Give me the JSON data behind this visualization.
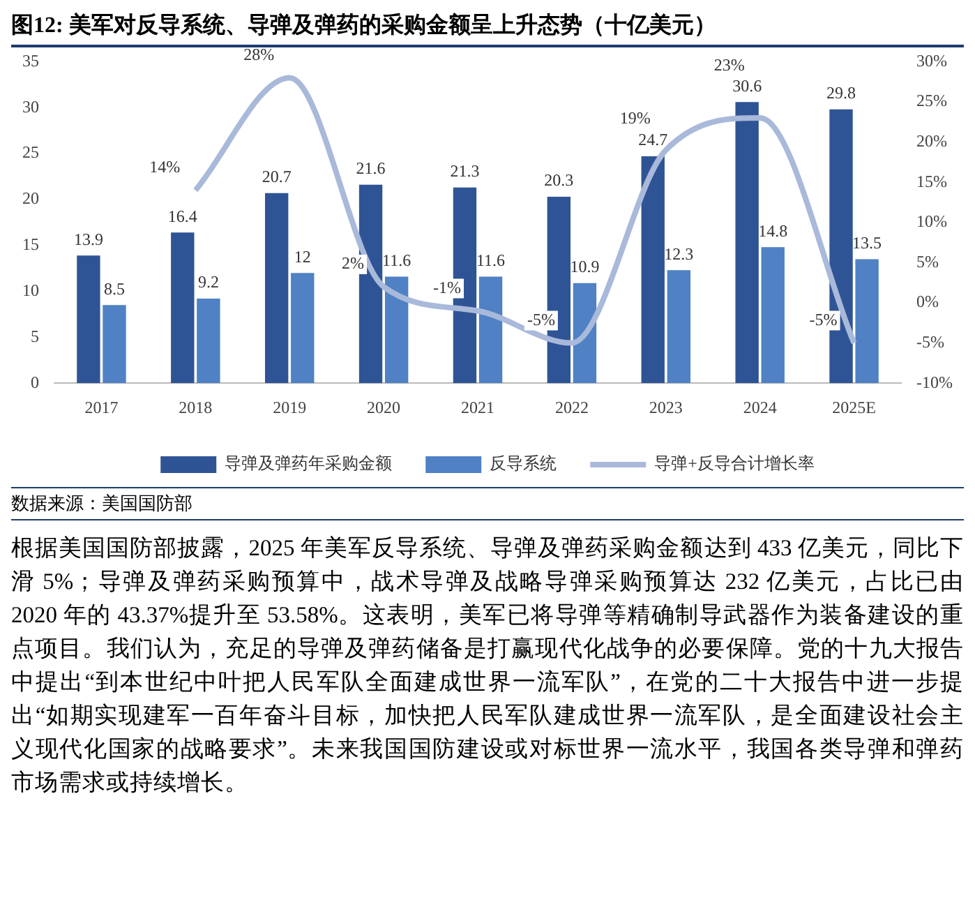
{
  "chart_data": {
    "type": "bar",
    "title": "图12: 美军对反导系统、导弹及弹药的采购金额呈上升态势（十亿美元）",
    "categories": [
      "2017",
      "2018",
      "2019",
      "2020",
      "2021",
      "2022",
      "2023",
      "2024",
      "2025E"
    ],
    "series": [
      {
        "name": "导弹及弹药年采购金额",
        "color": "#2f5496",
        "values": [
          13.9,
          16.4,
          20.7,
          21.6,
          21.3,
          20.3,
          24.7,
          30.6,
          29.8
        ],
        "value_labels": [
          "13.9",
          "16.4",
          "20.7",
          "21.6",
          "21.3",
          "20.3",
          "24.7",
          "30.6",
          "29.8"
        ]
      },
      {
        "name": "反导系统",
        "color": "#4f81c4",
        "values": [
          8.5,
          9.2,
          12,
          11.6,
          11.6,
          10.9,
          12.3,
          14.8,
          13.5
        ],
        "value_labels": [
          "8.5",
          "9.2",
          "12",
          "11.6",
          "11.6",
          "10.9",
          "12.3",
          "14.8",
          "13.5"
        ]
      },
      {
        "name": "导弹+反导合计增长率",
        "type": "line",
        "axis": "y2",
        "color": "#a9b9da",
        "values": [
          null,
          14,
          28,
          2,
          -1,
          -5,
          19,
          23,
          -5
        ],
        "value_labels": [
          null,
          "14%",
          "28%",
          "2%",
          "-1%",
          "-5%",
          "19%",
          "23%",
          "-5%"
        ]
      }
    ],
    "ylim": [
      0,
      35
    ],
    "yticks": [
      0,
      5,
      10,
      15,
      20,
      25,
      30,
      35
    ],
    "y2lim": [
      -10,
      30
    ],
    "y2ticks": [
      {
        "value": -10,
        "label": "-10%"
      },
      {
        "value": -5,
        "label": "-5%"
      },
      {
        "value": 0,
        "label": "0%"
      },
      {
        "value": 5,
        "label": "5%"
      },
      {
        "value": 10,
        "label": "10%"
      },
      {
        "value": 15,
        "label": "15%"
      },
      {
        "value": 20,
        "label": "20%"
      },
      {
        "value": 25,
        "label": "25%"
      },
      {
        "value": 30,
        "label": "30%"
      }
    ],
    "legend": "bottom",
    "marker": "none",
    "line_style": "solid",
    "annotations": [
      "数据来源：美国国防部",
      "根据美国国防部披露，2025 年美军反导系统、导弹及弹药采购金额达到 433 亿美元，同比下滑 5%；导弹及弹药采购预算中，战术导弹及战略导弹采购预算达 232 亿美元，占比已由 2020 年的 43.37%提升至 53.58%。这表明，美军已将导弹等精确制导武器作为装备建设的重点项目。我们认为，充足的导弹及弹药储备是打赢现代化战争的必要保障。党的十九大报告中提出“到本世纪中叶把人民军队全面建成世界一流军队”，在党的二十大报告中进一步提出“如期实现建军一百年奋斗目标，加快把人民军队建成世界一流军队，是全面建设社会主义现代化国家的战略要求”。未来我国国防建设或对标世界一流水平，我国各类导弹和弹药市场需求或持续增长。"
    ]
  }
}
